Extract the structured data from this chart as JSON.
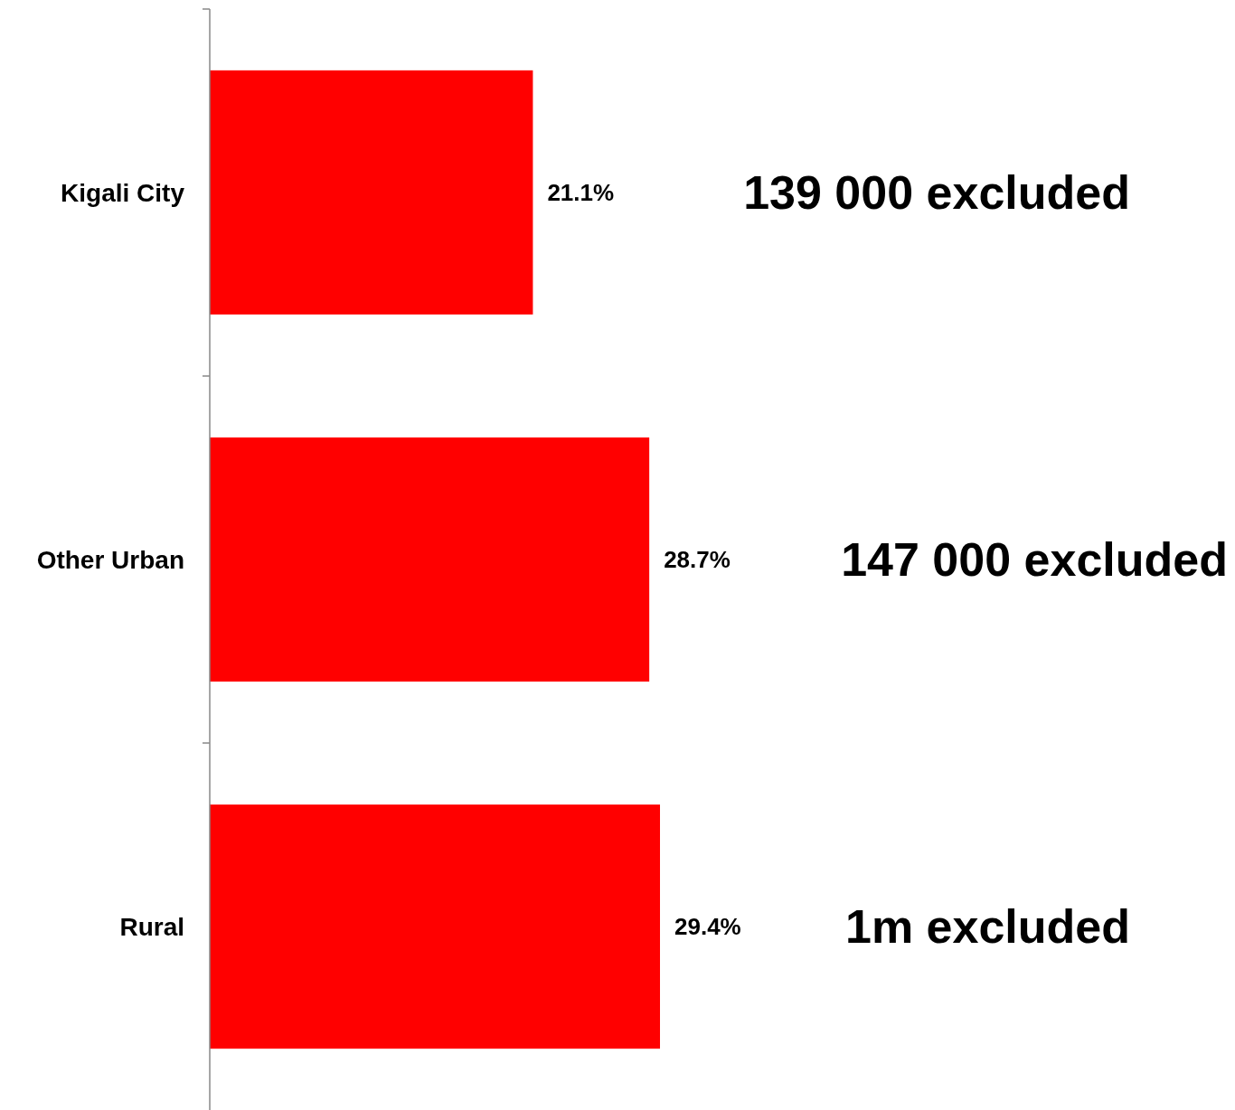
{
  "chart_data": {
    "type": "bar",
    "orientation": "horizontal",
    "categories": [
      "Kigali City",
      "Other Urban",
      "Rural"
    ],
    "values": [
      21.1,
      28.7,
      29.4
    ],
    "value_labels": [
      "21.1%",
      "28.7%",
      "29.4%"
    ],
    "color": "#ff0000",
    "annotations": [
      "139 000 excluded",
      "147 000 excluded",
      "1m excluded"
    ]
  }
}
